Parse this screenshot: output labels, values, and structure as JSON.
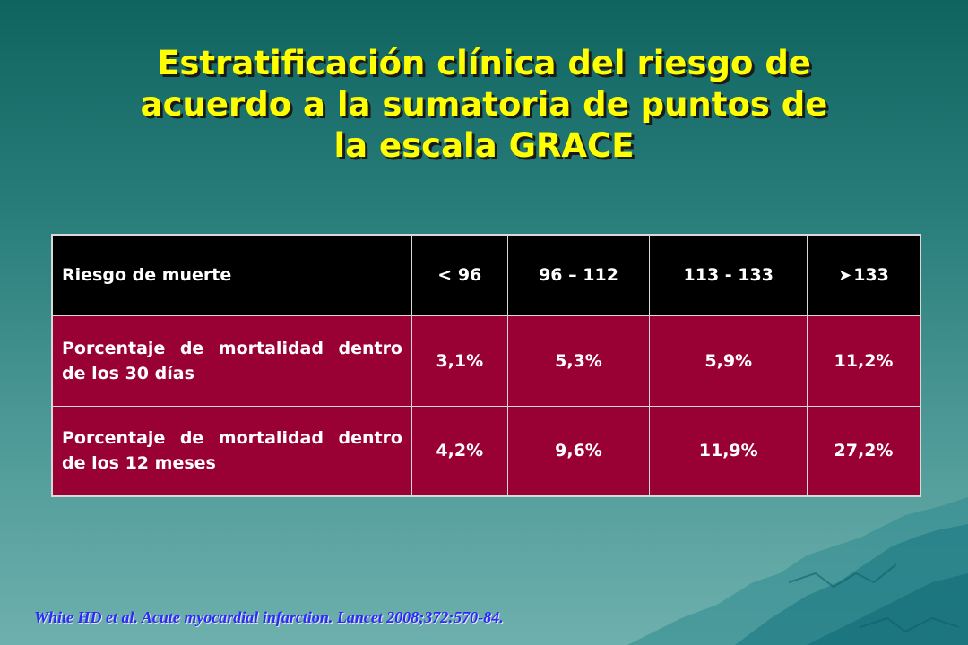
{
  "title": {
    "line1": "Estratificación clínica del riesgo de",
    "line2": "acuerdo a la sumatoria de puntos de",
    "line3": "la escala GRACE"
  },
  "table": {
    "header": {
      "label": "Riesgo de muerte",
      "cols": [
        "< 96",
        "96 – 112",
        "113 - 133",
        "133"
      ],
      "last_col_icon": "greater-than-arrow-icon"
    },
    "rows": [
      {
        "label": "Porcentaje de mortalidad dentro de los 30 días",
        "values": [
          "3,1%",
          "5,3%",
          "5,9%",
          "11,2%"
        ]
      },
      {
        "label": "Porcentaje de mortalidad dentro de los 12 meses",
        "values": [
          "4,2%",
          "9,6%",
          "11,9%",
          "27,2%"
        ]
      }
    ]
  },
  "citation": "White HD et al. Acute myocardial infarction. Lancet 2008;372:570-84.",
  "colors": {
    "title": "#ffff00",
    "header_bg": "#000000",
    "row_bg": "#990033",
    "citation": "#2a2aff"
  }
}
